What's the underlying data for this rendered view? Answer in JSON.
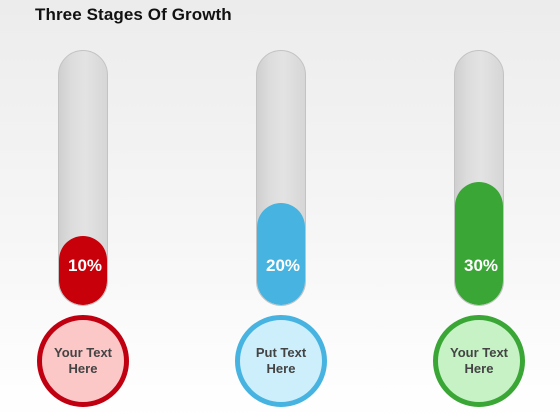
{
  "title": "Three Stages Of Growth",
  "stages": [
    {
      "percent_label": "10%",
      "fill_level": 0.27,
      "color": "#c8000a",
      "circle_bg": "#fbc7c7",
      "circle_border": "#c00010",
      "text": "Your Text\nHere"
    },
    {
      "percent_label": "20%",
      "fill_level": 0.4,
      "color": "#47b3e0",
      "circle_bg": "#cdeefb",
      "circle_border": "#47b3e0",
      "text": "Put Text\nHere"
    },
    {
      "percent_label": "30%",
      "fill_level": 0.48,
      "color": "#3aa635",
      "circle_bg": "#c6f2c6",
      "circle_border": "#3aa635",
      "text": "Your Text\nHere"
    }
  ]
}
